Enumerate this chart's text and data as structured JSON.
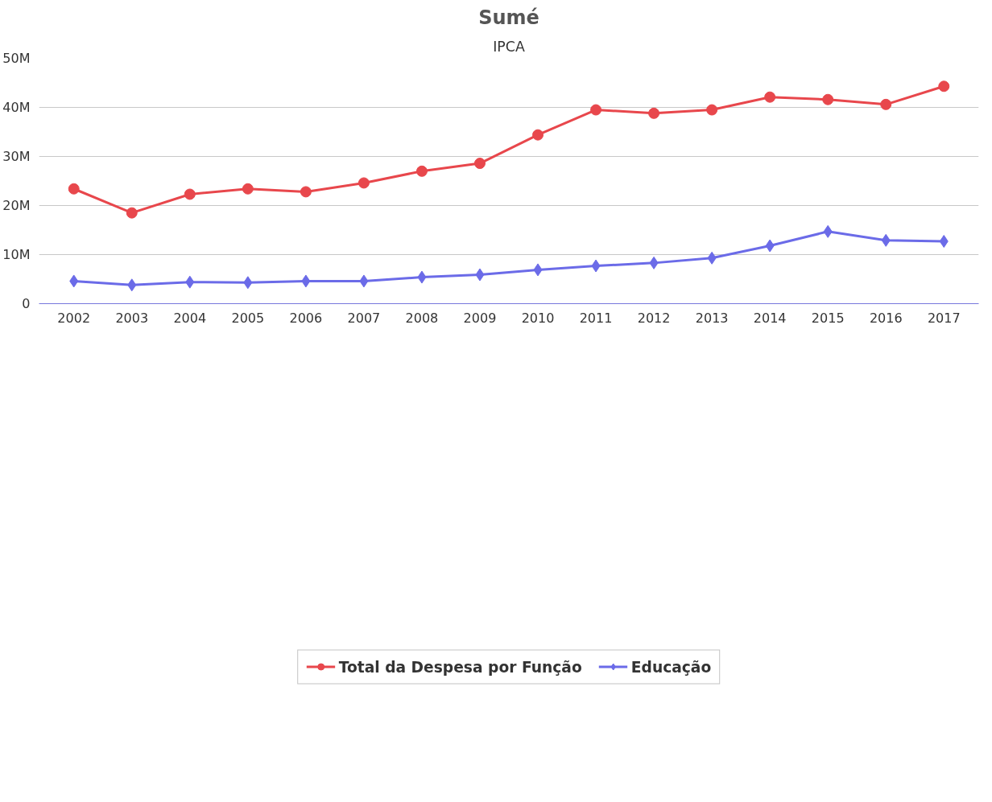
{
  "chart_data": {
    "type": "line",
    "title": "Sumé",
    "subtitle": "IPCA",
    "categories": [
      "2002",
      "2003",
      "2004",
      "2005",
      "2006",
      "2007",
      "2008",
      "2009",
      "2010",
      "2011",
      "2012",
      "2013",
      "2014",
      "2015",
      "2016",
      "2017"
    ],
    "series": [
      {
        "name": "Total da Despesa por Função",
        "color": "#e8474c",
        "marker": "circle",
        "values": [
          23400000,
          18500000,
          22300000,
          23400000,
          22800000,
          24600000,
          27000000,
          28600000,
          34400000,
          39500000,
          38800000,
          39500000,
          42100000,
          41600000,
          40600000,
          44300000
        ]
      },
      {
        "name": "Educação",
        "color": "#6b6be8",
        "marker": "diamond",
        "values": [
          4600000,
          3800000,
          4400000,
          4300000,
          4600000,
          4600000,
          5400000,
          5900000,
          6900000,
          7700000,
          8300000,
          9300000,
          11800000,
          14700000,
          12900000,
          12700000
        ]
      }
    ],
    "ylim": [
      0,
      50000000
    ],
    "yticks": [
      {
        "value": 0,
        "label": "0"
      },
      {
        "value": 10000000,
        "label": "10M"
      },
      {
        "value": 20000000,
        "label": "20M"
      },
      {
        "value": 30000000,
        "label": "30M"
      },
      {
        "value": 40000000,
        "label": "40M"
      },
      {
        "value": 50000000,
        "label": "50M"
      }
    ],
    "grid": "y",
    "legend": "bottom",
    "line_style": "solid"
  }
}
